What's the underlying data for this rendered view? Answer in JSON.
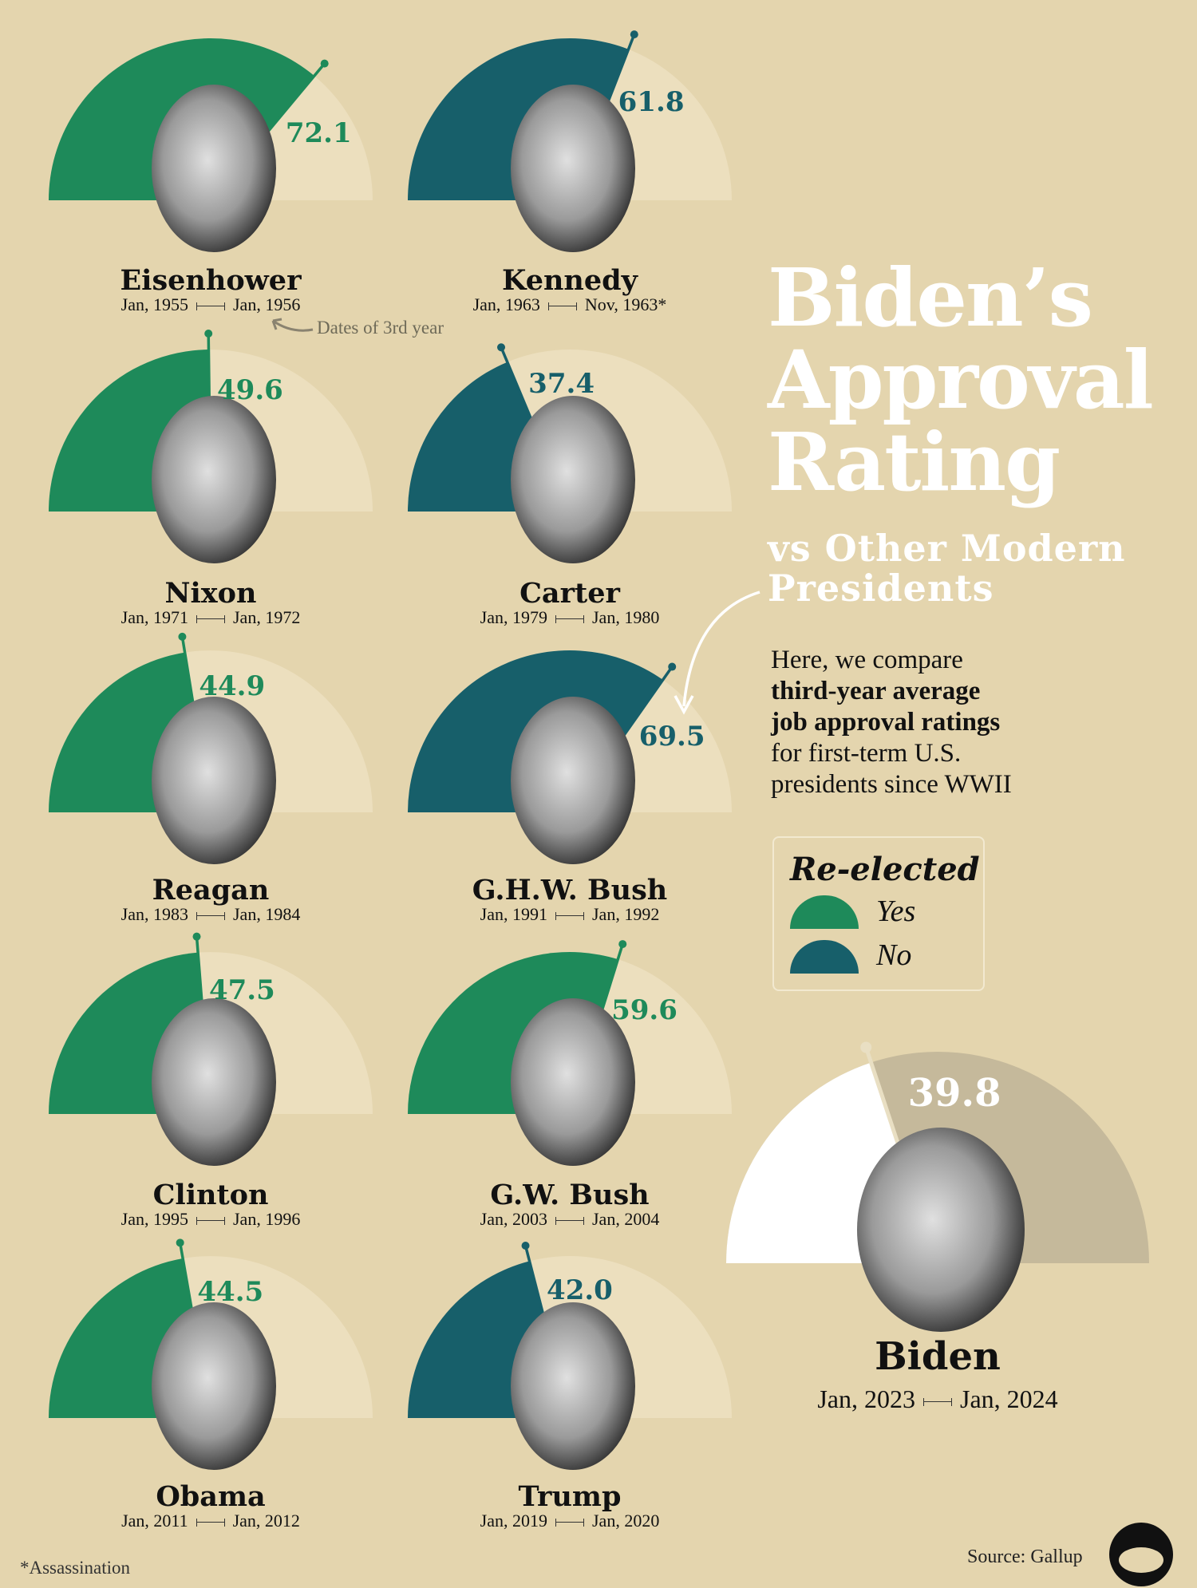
{
  "title": {
    "line1": "Biden’s",
    "line2": "Approval",
    "line3": "Rating"
  },
  "subtitle": {
    "line1": "vs Other Modern",
    "line2": "Presidents"
  },
  "description": {
    "line1": "Here, we compare",
    "line2_bold": "third-year average",
    "line3_bold": "job approval ratings",
    "line4": "for first-term U.S.",
    "line5": "presidents since WWII"
  },
  "legend": {
    "title": "Re-elected",
    "yes": "Yes",
    "no": "No"
  },
  "colors": {
    "yes": "#1e8a5a",
    "no": "#175f6a",
    "track": "#ecdfbe",
    "background": "#e4d5ae",
    "biden_fill": "#ffffff",
    "biden_track": "#c5b99b"
  },
  "annotation": "Dates of 3rd year",
  "footnote": "*Assassination",
  "source": "Source: Gallup",
  "chart_data": {
    "type": "gauge",
    "scale": [
      0,
      100
    ],
    "presidents": [
      {
        "name": "Eisenhower",
        "value": 72.1,
        "label": "72.1",
        "reelected": "yes",
        "start": "Jan, 1955",
        "end": "Jan, 1956"
      },
      {
        "name": "Kennedy",
        "value": 61.8,
        "label": "61.8",
        "reelected": "no",
        "start": "Jan, 1963",
        "end": "Nov, 1963*"
      },
      {
        "name": "Nixon",
        "value": 49.6,
        "label": "49.6",
        "reelected": "yes",
        "start": "Jan, 1971",
        "end": "Jan, 1972"
      },
      {
        "name": "Carter",
        "value": 37.4,
        "label": "37.4",
        "reelected": "no",
        "start": "Jan, 1979",
        "end": "Jan, 1980"
      },
      {
        "name": "Reagan",
        "value": 44.9,
        "label": "44.9",
        "reelected": "yes",
        "start": "Jan, 1983",
        "end": "Jan, 1984"
      },
      {
        "name": "G.H.W. Bush",
        "value": 69.5,
        "label": "69.5",
        "reelected": "no",
        "start": "Jan, 1991",
        "end": "Jan, 1992"
      },
      {
        "name": "Clinton",
        "value": 47.5,
        "label": "47.5",
        "reelected": "yes",
        "start": "Jan, 1995",
        "end": "Jan, 1996"
      },
      {
        "name": "G.W. Bush",
        "value": 59.6,
        "label": "59.6",
        "reelected": "yes",
        "start": "Jan, 2003",
        "end": "Jan, 2004"
      },
      {
        "name": "Obama",
        "value": 44.5,
        "label": "44.5",
        "reelected": "yes",
        "start": "Jan, 2011",
        "end": "Jan, 2012"
      },
      {
        "name": "Trump",
        "value": 42.0,
        "label": "42.0",
        "reelected": "no",
        "start": "Jan, 2019",
        "end": "Jan, 2020"
      }
    ],
    "featured": {
      "name": "Biden",
      "value": 39.8,
      "label": "39.8",
      "start": "Jan, 2023",
      "end": "Jan, 2024"
    }
  }
}
